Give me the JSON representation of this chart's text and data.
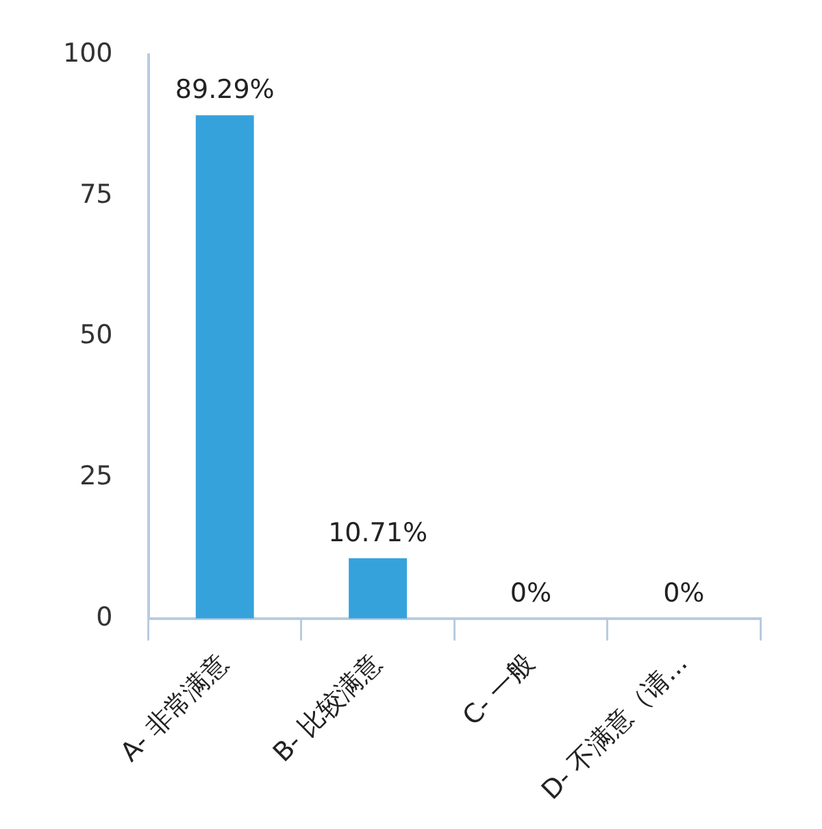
{
  "chart_data": {
    "type": "bar",
    "categories": [
      "A- 非常满意",
      "B- 比较满意",
      "C- 一般",
      "D- 不满意（请..."
    ],
    "values": [
      89.29,
      10.71,
      0,
      0
    ],
    "value_labels": [
      "89.29%",
      "10.71%",
      "0%",
      "0%"
    ],
    "color": "#36a2dc",
    "ylim": [
      0,
      100
    ],
    "yticks": [
      0,
      25,
      50,
      75,
      100
    ],
    "grid": false,
    "legend": false
  }
}
